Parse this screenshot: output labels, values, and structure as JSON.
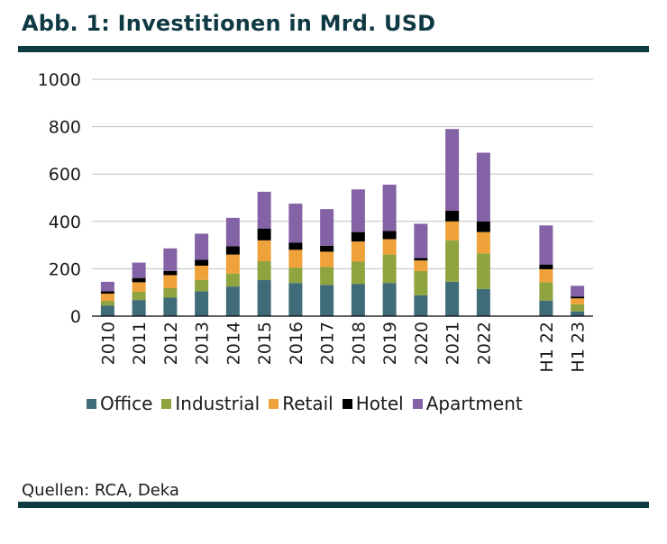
{
  "header": {
    "title": "Abb. 1: Investitionen in Mrd. USD"
  },
  "footer": {
    "source": "Quellen: RCA, Deka"
  },
  "colors": {
    "Office": "#3f6c78",
    "Industrial": "#8fa33f",
    "Retail": "#f0a23a",
    "Hotel": "#000000",
    "Apartment": "#8362a5",
    "rule": "#0d3b42",
    "grid": "#bfbfbf"
  },
  "chart_data": {
    "type": "bar",
    "stacked": true,
    "title": "Abb. 1: Investitionen in Mrd. USD",
    "xlabel": "",
    "ylabel": "",
    "ylim": [
      0,
      1000
    ],
    "yticks": [
      "0",
      "200",
      "400",
      "600",
      "800",
      "1000"
    ],
    "ytick_values": [
      0,
      200,
      400,
      600,
      800,
      1000
    ],
    "grid": true,
    "legend_position": "bottom",
    "categories": [
      "2010",
      "2011",
      "2012",
      "2013",
      "2014",
      "2015",
      "2016",
      "2017",
      "2018",
      "2019",
      "2020",
      "2021",
      "2022",
      "",
      "H1 22",
      "H1 23"
    ],
    "series": [
      {
        "name": "Office",
        "values": [
          45,
          68,
          78,
          105,
          125,
          152,
          140,
          132,
          135,
          140,
          88,
          145,
          115,
          null,
          65,
          20
        ]
      },
      {
        "name": "Industrial",
        "values": [
          20,
          35,
          40,
          48,
          55,
          80,
          65,
          75,
          95,
          120,
          102,
          175,
          150,
          null,
          78,
          30
        ]
      },
      {
        "name": "Retail",
        "values": [
          30,
          40,
          55,
          60,
          80,
          88,
          75,
          65,
          85,
          65,
          45,
          80,
          90,
          null,
          55,
          25
        ]
      },
      {
        "name": "Hotel",
        "values": [
          10,
          18,
          18,
          25,
          35,
          50,
          30,
          25,
          40,
          35,
          10,
          45,
          45,
          null,
          20,
          8
        ]
      },
      {
        "name": "Apartment",
        "values": [
          40,
          65,
          95,
          110,
          120,
          155,
          165,
          155,
          180,
          195,
          145,
          345,
          290,
          null,
          165,
          45
        ]
      }
    ]
  }
}
